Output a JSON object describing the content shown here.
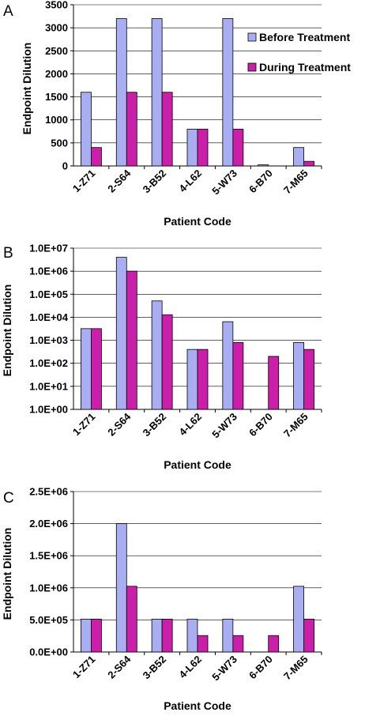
{
  "legend": {
    "before": "Before Treatment",
    "during": "During Treatment",
    "placement": "top-right"
  },
  "colors": {
    "before": "#a9aef2",
    "during": "#cc1fa9"
  },
  "chart_data": [
    {
      "panel": "A",
      "type": "bar",
      "scale": "linear",
      "categories": [
        "1-Z71",
        "2-S64",
        "3-B52",
        "4-L62",
        "5-W73",
        "6-B70",
        "7-M65"
      ],
      "series": [
        {
          "name": "Before Treatment",
          "values": [
            1600,
            3200,
            3200,
            800,
            3200,
            25,
            400
          ]
        },
        {
          "name": "During Treatment",
          "values": [
            400,
            1600,
            1600,
            800,
            800,
            0,
            100
          ]
        }
      ],
      "ylim": [
        0,
        3500
      ],
      "yticks": [
        0,
        500,
        1000,
        1500,
        2000,
        2500,
        3000,
        3500
      ],
      "ytick_labels": [
        "0",
        "500",
        "1000",
        "1500",
        "2000",
        "2500",
        "3000",
        "3500"
      ],
      "xlabel": "Patient Code",
      "ylabel": "Endpoint Dilution",
      "grid": true,
      "legend": true
    },
    {
      "panel": "B",
      "type": "bar",
      "scale": "log",
      "categories": [
        "1-Z71",
        "2-S64",
        "3-B52",
        "4-L62",
        "5-W73",
        "6-B70",
        "7-M65"
      ],
      "series": [
        {
          "name": "Before Treatment",
          "values": [
            3200,
            4000000,
            51200,
            400,
            6400,
            0,
            800
          ]
        },
        {
          "name": "During Treatment",
          "values": [
            3200,
            1000000,
            12800,
            400,
            800,
            200,
            400
          ]
        }
      ],
      "ylim": [
        1,
        10000000
      ],
      "yticks": [
        1,
        10,
        100,
        1000,
        10000,
        100000,
        1000000,
        10000000
      ],
      "ytick_labels": [
        "1.0E+00",
        "1.0E+01",
        "1.0E+02",
        "1.0E+03",
        "1.0E+04",
        "1.0E+05",
        "1.0E+06",
        "1.0E+07"
      ],
      "xlabel": "Patient Code",
      "ylabel": "Endpoint Dilution",
      "grid": true,
      "legend": false
    },
    {
      "panel": "C",
      "type": "bar",
      "scale": "linear",
      "categories": [
        "1-Z71",
        "2-S64",
        "3-B52",
        "4-L62",
        "5-W73",
        "6-B70",
        "7-M65"
      ],
      "series": [
        {
          "name": "Before Treatment",
          "values": [
            512000,
            2000000,
            512000,
            512000,
            512000,
            0,
            1024000
          ]
        },
        {
          "name": "During Treatment",
          "values": [
            512000,
            1024000,
            512000,
            256000,
            256000,
            256000,
            512000
          ]
        }
      ],
      "ylim": [
        0,
        2500000
      ],
      "yticks": [
        0,
        500000,
        1000000,
        1500000,
        2000000,
        2500000
      ],
      "ytick_labels": [
        "0.0E+00",
        "5.0E+05",
        "1.0E+06",
        "1.5E+06",
        "2.0E+06",
        "2.5E+06"
      ],
      "xlabel": "Patient Code",
      "ylabel": "Endpoint Dilution",
      "grid": true,
      "legend": false
    }
  ]
}
